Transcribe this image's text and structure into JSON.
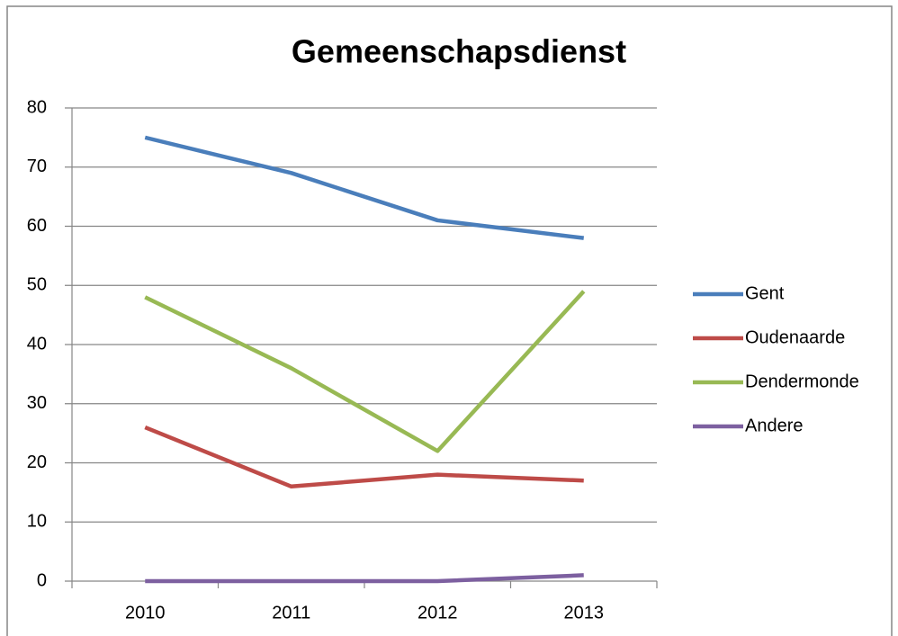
{
  "chart_data": {
    "type": "line",
    "title": "Gemeenschapsdienst",
    "categories": [
      "2010",
      "2011",
      "2012",
      "2013"
    ],
    "series": [
      {
        "name": "Gent",
        "color": "#4a7ebb",
        "values": [
          75,
          69,
          61,
          58
        ]
      },
      {
        "name": "Oudenaarde",
        "color": "#be4b48",
        "values": [
          26,
          16,
          18,
          17
        ]
      },
      {
        "name": "Dendermonde",
        "color": "#98b954",
        "values": [
          48,
          36,
          22,
          49
        ]
      },
      {
        "name": "Andere",
        "color": "#7d60a0",
        "values": [
          0,
          0,
          0,
          1
        ]
      }
    ],
    "ylim": [
      0,
      80
    ],
    "yticks": [
      0,
      10,
      20,
      30,
      40,
      50,
      60,
      70,
      80
    ],
    "grid": true,
    "legend": "right"
  }
}
